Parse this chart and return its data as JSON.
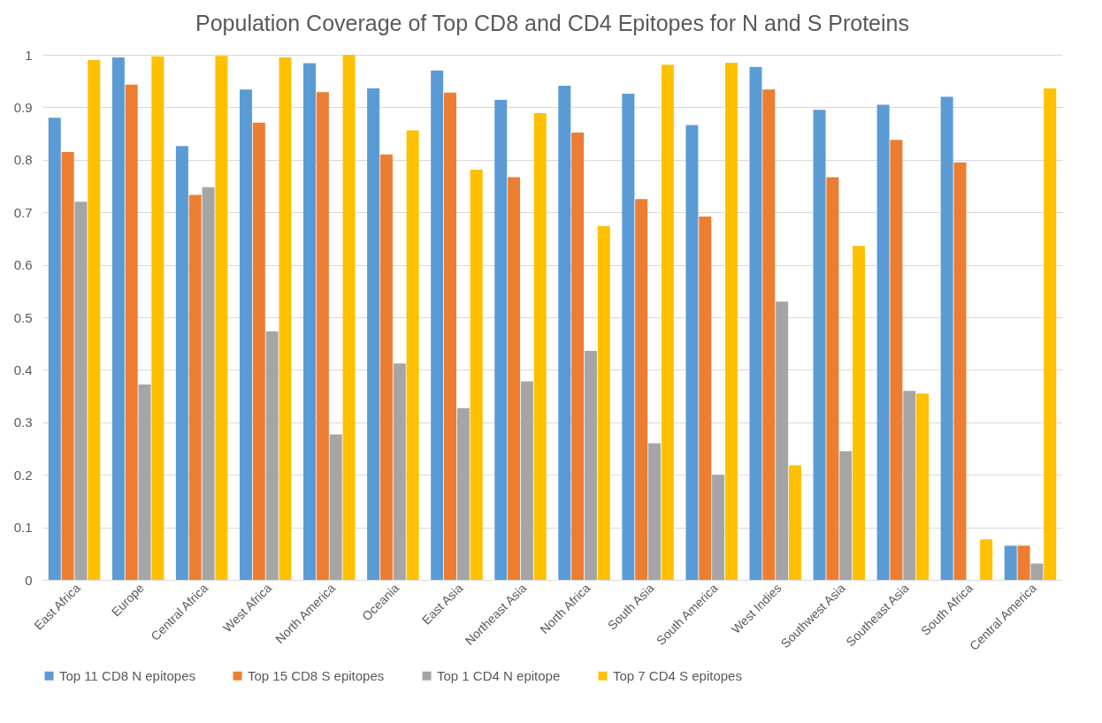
{
  "chart_data": {
    "type": "bar",
    "title": "Population Coverage of Top CD8 and CD4 Epitopes for N and S Proteins",
    "categories": [
      "East Africa",
      "Europe",
      "Central Africa",
      "West Africa",
      "North America",
      "Oceania",
      "East Asia",
      "Northeast Asia",
      "North Africa",
      "South Asia",
      "South America",
      "West Indies",
      "Southwest Asia",
      "Southeast Asia",
      "South Africa",
      "Central America"
    ],
    "series": [
      {
        "name": "Top 11 CD8 N epitopes",
        "color": "#5b9bd5",
        "values": [
          0.88,
          0.995,
          0.826,
          0.934,
          0.984,
          0.936,
          0.97,
          0.914,
          0.941,
          0.926,
          0.866,
          0.977,
          0.895,
          0.905,
          0.92,
          0.065
        ]
      },
      {
        "name": "Top 15 CD8 S epitopes",
        "color": "#ed7d31",
        "values": [
          0.815,
          0.943,
          0.733,
          0.871,
          0.929,
          0.81,
          0.928,
          0.767,
          0.852,
          0.725,
          0.692,
          0.934,
          0.767,
          0.838,
          0.795,
          0.065
        ]
      },
      {
        "name": "Top 1 CD4 N epitope",
        "color": "#a5a5a5",
        "values": [
          0.72,
          0.372,
          0.748,
          0.473,
          0.277,
          0.412,
          0.327,
          0.378,
          0.436,
          0.26,
          0.2,
          0.53,
          0.245,
          0.36,
          0,
          0.031
        ]
      },
      {
        "name": "Top 7 CD4 S epitopes",
        "color": "#ffc000",
        "values": [
          0.99,
          0.997,
          0.998,
          0.995,
          1.0,
          0.856,
          0.781,
          0.889,
          0.674,
          0.981,
          0.985,
          0.218,
          0.636,
          0.355,
          0.077,
          0.936
        ]
      }
    ],
    "ylim": [
      0,
      1
    ],
    "yticks": [
      0,
      0.1,
      0.2,
      0.3,
      0.4,
      0.5,
      0.6,
      0.7,
      0.8,
      0.9,
      1
    ],
    "grid": "y",
    "legend": "bottom"
  }
}
